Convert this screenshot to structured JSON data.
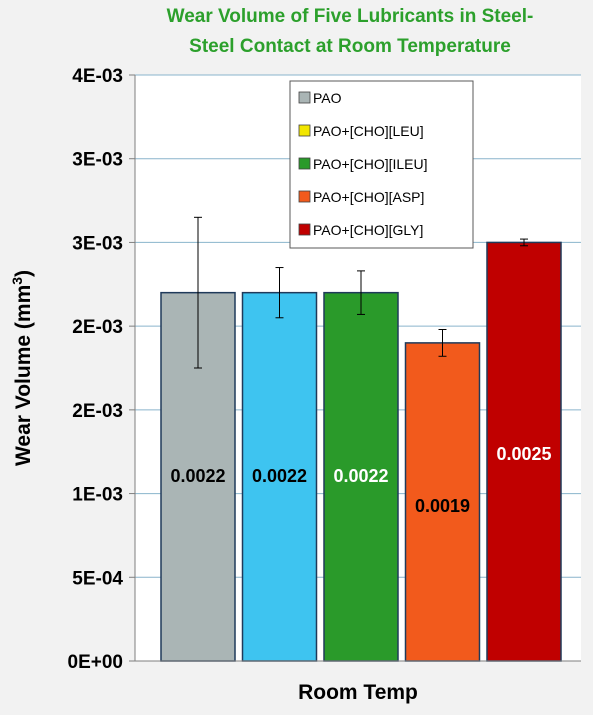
{
  "chart_data": {
    "type": "bar",
    "title_lines": [
      "Wear Volume of Five Lubricants in Steel-",
      "Steel Contact at Room Temperature"
    ],
    "xlabel": "Room Temp",
    "ylabel": "Wear Volume (mm",
    "ylabel_sup": "3",
    "ylabel_end": ")",
    "ylim": [
      0,
      0.0035
    ],
    "grid": true,
    "legend_position": "top-center",
    "yticks": [
      {
        "value": 0,
        "label": "0E+00"
      },
      {
        "value": 0.0005,
        "label": "5E-04"
      },
      {
        "value": 0.001,
        "label": "1E-03"
      },
      {
        "value": 0.0015,
        "label": "2E-03"
      },
      {
        "value": 0.002,
        "label": "2E-03"
      },
      {
        "value": 0.0025,
        "label": "3E-03"
      },
      {
        "value": 0.003,
        "label": "3E-03"
      },
      {
        "value": 0.0035,
        "label": "4E-03"
      }
    ],
    "categories": [
      "Room Temp"
    ],
    "series": [
      {
        "name": "PAO",
        "value": 0.0022,
        "error": 0.00045,
        "label": "0.0022",
        "color": "#aab5b5",
        "legend_color": "#aab5b5",
        "label_color": "#000000"
      },
      {
        "name": "PAO+[CHO][LEU]",
        "value": 0.0022,
        "error": 0.00015,
        "label": "0.0022",
        "color": "#3ec4f0",
        "legend_color": "#f2e600",
        "label_color": "#000000"
      },
      {
        "name": "PAO+[CHO][ILEU]",
        "value": 0.0022,
        "error": 0.00013,
        "label": "0.0022",
        "color": "#2a9a2a",
        "legend_color": "#2a9a2a",
        "label_color": "#ffffff"
      },
      {
        "name": "PAO+[CHO][ASP]",
        "value": 0.0019,
        "error": 8e-05,
        "label": "0.0019",
        "color": "#f25a1c",
        "legend_color": "#f25a1c",
        "label_color": "#000000"
      },
      {
        "name": "PAO+[CHO][GLY]",
        "value": 0.0025,
        "error": 2e-05,
        "label": "0.0025",
        "color": "#c00000",
        "legend_color": "#c00000",
        "label_color": "#ffffff"
      }
    ]
  }
}
